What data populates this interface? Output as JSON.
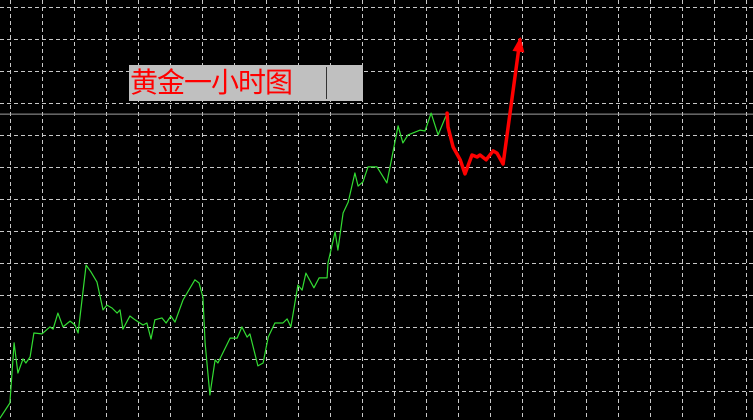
{
  "chart_data": {
    "type": "line",
    "title": "黄金一小时图",
    "xlabel": "",
    "ylabel": "",
    "xlim": [
      0,
      235.3
    ],
    "ylim": [
      0,
      131.25
    ],
    "grid": true,
    "grid_style": "dashed",
    "current_price_level": 95.6,
    "series": [
      {
        "color": "#33dd33",
        "points": [
          [
            0,
            0.6
          ],
          [
            3.1,
            5.3
          ],
          [
            4.4,
            24.1
          ],
          [
            5.6,
            14.7
          ],
          [
            7.2,
            19.1
          ],
          [
            8.1,
            17.8
          ],
          [
            9.4,
            19.7
          ],
          [
            10.6,
            27.2
          ],
          [
            13.1,
            26.9
          ],
          [
            15.6,
            29.1
          ],
          [
            16.6,
            28.4
          ],
          [
            18.1,
            33.4
          ],
          [
            19.7,
            29.1
          ],
          [
            21.9,
            30.9
          ],
          [
            23.4,
            29.7
          ],
          [
            24.4,
            27.2
          ],
          [
            26.9,
            48.4
          ],
          [
            28.4,
            46.3
          ],
          [
            30.3,
            43.1
          ],
          [
            32.2,
            34.4
          ],
          [
            33.4,
            35.9
          ],
          [
            35,
            35
          ],
          [
            36.6,
            33.4
          ],
          [
            37.5,
            34.4
          ],
          [
            38.4,
            28.4
          ],
          [
            40.6,
            32.5
          ],
          [
            42.2,
            31.3
          ],
          [
            44.7,
            29.7
          ],
          [
            45.9,
            30.3
          ],
          [
            47.2,
            25.3
          ],
          [
            48.4,
            31.3
          ],
          [
            50.6,
            31.9
          ],
          [
            51.9,
            30.3
          ],
          [
            53.4,
            32.5
          ],
          [
            54.7,
            30.6
          ],
          [
            57.2,
            37.5
          ],
          [
            60.9,
            43.8
          ],
          [
            62.2,
            42.8
          ],
          [
            63.4,
            38.4
          ],
          [
            64.1,
            24.1
          ],
          [
            65.6,
            7.8
          ],
          [
            67.2,
            18.8
          ],
          [
            68.1,
            17.8
          ],
          [
            71.9,
            25.6
          ],
          [
            74.1,
            25.6
          ],
          [
            75.6,
            29.1
          ],
          [
            77.2,
            25.9
          ],
          [
            78.1,
            26.9
          ],
          [
            80.6,
            16.9
          ],
          [
            82.2,
            17.8
          ],
          [
            83.8,
            25.9
          ],
          [
            85.9,
            30.3
          ],
          [
            88.4,
            30.3
          ],
          [
            89.7,
            31.6
          ],
          [
            90.9,
            29.1
          ],
          [
            93.1,
            42.2
          ],
          [
            94.4,
            40.6
          ],
          [
            95.6,
            45.9
          ],
          [
            98.1,
            41.3
          ],
          [
            99.7,
            44.4
          ],
          [
            102.2,
            44.4
          ],
          [
            102.5,
            49.1
          ],
          [
            104.7,
            58.8
          ],
          [
            105.6,
            53.1
          ],
          [
            107.2,
            64.7
          ],
          [
            108.8,
            68.1
          ],
          [
            110.9,
            77.2
          ],
          [
            111.9,
            73.1
          ],
          [
            113.4,
            74.4
          ],
          [
            115,
            79.1
          ],
          [
            117.8,
            79.1
          ],
          [
            120.9,
            74.1
          ],
          [
            124.4,
            91.9
          ],
          [
            125.9,
            86.6
          ],
          [
            127.5,
            89.1
          ],
          [
            131.3,
            90.6
          ],
          [
            132.8,
            90.3
          ],
          [
            134.7,
            95.9
          ],
          [
            136.9,
            89.1
          ],
          [
            139.7,
            95.9
          ]
        ]
      },
      {
        "color": "#ff0000",
        "style": "annotation-arrow",
        "points": [
          [
            139.7,
            95.9
          ],
          [
            140,
            91.6
          ],
          [
            141.6,
            85.3
          ],
          [
            143.8,
            81.3
          ],
          [
            145.3,
            76.9
          ],
          [
            147.5,
            82.8
          ],
          [
            149.1,
            82.2
          ],
          [
            150,
            82.8
          ],
          [
            151.9,
            81.3
          ],
          [
            154.1,
            84.1
          ],
          [
            155.3,
            83.4
          ],
          [
            157.2,
            80
          ],
          [
            162.5,
            118.8
          ]
        ]
      }
    ],
    "colors": {
      "background": "#000000",
      "grid": "#c8c8c8",
      "price_line": "#a0a0a0",
      "label_bg": "#c0c0c0",
      "label_text": "#ff0000"
    }
  }
}
